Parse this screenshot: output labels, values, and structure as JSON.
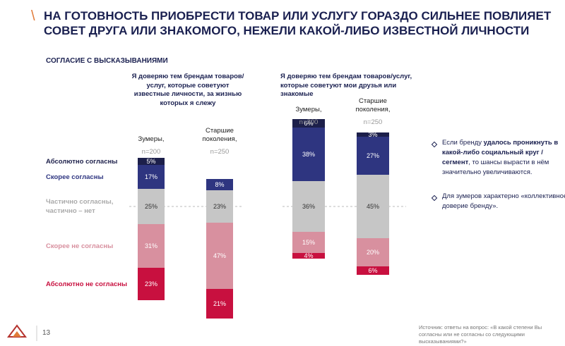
{
  "header": {
    "title": "НА ГОТОВНОСТЬ ПРИОБРЕСТИ ТОВАР ИЛИ УСЛУГУ ГОРАЗДО СИЛЬНЕЕ ПОВЛИЯЕТ СОВЕТ ДРУГА ИЛИ ЗНАКОМОГО, НЕЖЕЛИ КАКОЙ-ЛИБО ИЗВЕСТНОЙ ЛИЧНОСТИ",
    "subtitle": "СОГЛАСИЕ С ВЫСКАЗЫВАНИЯМИ"
  },
  "chart_data": {
    "type": "diverging-stacked-bar",
    "panel_titles": [
      "Я доверяю тем брендам товаров/услуг, которые советуют известные личности, за жизнью которых я слежу",
      "Я доверяю тем брендам товаров/услуг, которые советуют мои друзья или знакомые"
    ],
    "categories": [
      "Зумеры,",
      "Старшие поколения,",
      "Зумеры,",
      "Старшие поколения,"
    ],
    "sample_sizes": [
      "n=200",
      "n=250",
      "n=200",
      "n=250"
    ],
    "series": [
      {
        "name": "Абсолютно согласны",
        "color": "#1c1f4a",
        "values": [
          5,
          null,
          6,
          3
        ],
        "value_labels": [
          "5%",
          null,
          "6%",
          "3%"
        ]
      },
      {
        "name": "Скорее согласны",
        "color": "#2e3580",
        "values": [
          17,
          8,
          38,
          27
        ],
        "value_labels": [
          "17%",
          "8%",
          "38%",
          "27%"
        ]
      },
      {
        "name": "Частично согласны, частично – нет",
        "color": "#c6c6c6",
        "values": [
          25,
          23,
          36,
          45
        ],
        "value_labels": [
          "25%",
          "23%",
          "36%",
          "45%"
        ]
      },
      {
        "name": "Скорее не согласны",
        "color": "#d8909f",
        "values": [
          31,
          47,
          15,
          20
        ],
        "value_labels": [
          "31%",
          "47%",
          "15%",
          "20%"
        ]
      },
      {
        "name": "Абсолютно не согласны",
        "color": "#c8103f",
        "values": [
          23,
          21,
          4,
          6
        ],
        "value_labels": [
          "23%",
          "21%",
          "4%",
          "6%"
        ]
      }
    ]
  },
  "notes": [
    [
      "Если бренду ",
      "удалось проникнуть в какой-либо социальный круг / сегмент",
      ", то шансы вырасти в нём значительно увеличиваются."
    ],
    [
      "Для зумеров характерно «коллективное доверие бренду»."
    ]
  ],
  "footer": {
    "page": "13",
    "source": "Источник: ответы на вопрос: «В какой степени Вы согласны или не согласны со следующими высказываниями?»"
  }
}
